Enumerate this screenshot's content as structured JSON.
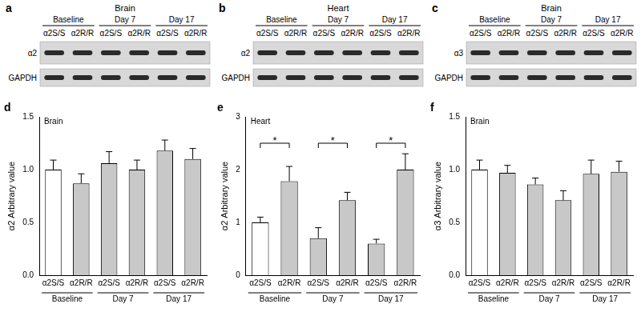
{
  "blots": [
    {
      "panel": "a",
      "title": "Brain",
      "groups": [
        "Baseline",
        "Baseline",
        "Day 7",
        "Day 7",
        "Day 17",
        "Day 17"
      ],
      "lanes": [
        "α2S/S",
        "α2R/R",
        "α2S/S",
        "α2R/R",
        "α2S/S",
        "α2R/R"
      ],
      "rows": [
        "α2",
        "GAPDH"
      ]
    },
    {
      "panel": "b",
      "title": "Heart",
      "groups": [
        "Baseline",
        "Baseline",
        "Day 7",
        "Day 7",
        "Day 17",
        "Day 17"
      ],
      "lanes": [
        "α2S/S",
        "α2R/R",
        "α2S/S",
        "α2R/R",
        "α2S/S",
        "α2R/R"
      ],
      "rows": [
        "α2",
        "GAPDH"
      ]
    },
    {
      "panel": "c",
      "title": "Brain",
      "groups": [
        "Baseline",
        "Baseline",
        "Day 7",
        "Day 7",
        "Day 17",
        "Day 17"
      ],
      "lanes": [
        "α2S/S",
        "α2R/R",
        "α2S/S",
        "α2R/R",
        "α2S/S",
        "α2R/R"
      ],
      "rows": [
        "α3",
        "GAPDH"
      ]
    }
  ],
  "chart_data": [
    {
      "type": "bar",
      "panel": "d",
      "title": "Brain",
      "y_label": "α2 Arbitrary value",
      "categories": [
        "α2S/S",
        "α2R/R",
        "α2S/S",
        "α2R/R",
        "α2S/S",
        "α2R/R"
      ],
      "groups": [
        "Baseline",
        "Baseline",
        "Day 7",
        "Day 7",
        "Day 17",
        "Day 17"
      ],
      "values": [
        1.0,
        0.87,
        1.06,
        1.0,
        1.18,
        1.1
      ],
      "errors": [
        0.09,
        0.09,
        0.11,
        0.09,
        0.1,
        0.1
      ],
      "colors": [
        "#ffffff",
        "#c8c8c8",
        "#c8c8c8",
        "#c8c8c8",
        "#c8c8c8",
        "#c8c8c8"
      ],
      "ylim": [
        0,
        1.5
      ],
      "yticks": [
        {
          "value": 0,
          "label": "0.0"
        },
        0.5,
        {
          "value": 1,
          "label": "1.0"
        },
        1.5
      ],
      "grid": false
    },
    {
      "type": "bar",
      "panel": "e",
      "title": "Heart",
      "y_label": "α2 Arbitrary value",
      "categories": [
        "α2S/S",
        "α2R/R",
        "α2S/S",
        "α2R/R",
        "α2S/S",
        "α2R/R"
      ],
      "groups": [
        "Baseline",
        "Baseline",
        "Day 7",
        "Day 7",
        "Day 17",
        "Day 17"
      ],
      "values": [
        1.0,
        1.78,
        0.7,
        1.42,
        0.6,
        2.0
      ],
      "errors": [
        0.1,
        0.28,
        0.2,
        0.15,
        0.08,
        0.3
      ],
      "colors": [
        "#ffffff",
        "#c8c8c8",
        "#c8c8c8",
        "#c8c8c8",
        "#c8c8c8",
        "#c8c8c8"
      ],
      "ylim": [
        0,
        3
      ],
      "yticks": [
        0,
        1,
        2,
        3
      ],
      "annotations": [
        {
          "text": "*",
          "from": 0,
          "to": 1,
          "y": 2.5
        },
        {
          "text": "*",
          "from": 2,
          "to": 3,
          "y": 2.5
        },
        {
          "text": "*",
          "from": 4,
          "to": 5,
          "y": 2.5
        }
      ],
      "grid": false
    },
    {
      "type": "bar",
      "panel": "f",
      "title": "Brain",
      "y_label": "α3 Arbitrary value",
      "categories": [
        "α2S/S",
        "α2R/R",
        "α2S/S",
        "α2R/R",
        "α2S/S",
        "α2R/R"
      ],
      "groups": [
        "Baseline",
        "Baseline",
        "Day 7",
        "Day 7",
        "Day 17",
        "Day 17"
      ],
      "values": [
        1.0,
        0.97,
        0.86,
        0.71,
        0.96,
        0.98
      ],
      "errors": [
        0.09,
        0.07,
        0.06,
        0.09,
        0.13,
        0.1
      ],
      "colors": [
        "#ffffff",
        "#c8c8c8",
        "#c8c8c8",
        "#c8c8c8",
        "#c8c8c8",
        "#c8c8c8"
      ],
      "ylim": [
        0,
        1.5
      ],
      "yticks": [
        {
          "value": 0,
          "label": "0.0"
        },
        0.5,
        {
          "value": 1,
          "label": "1.0"
        },
        1.5
      ],
      "grid": false
    }
  ]
}
